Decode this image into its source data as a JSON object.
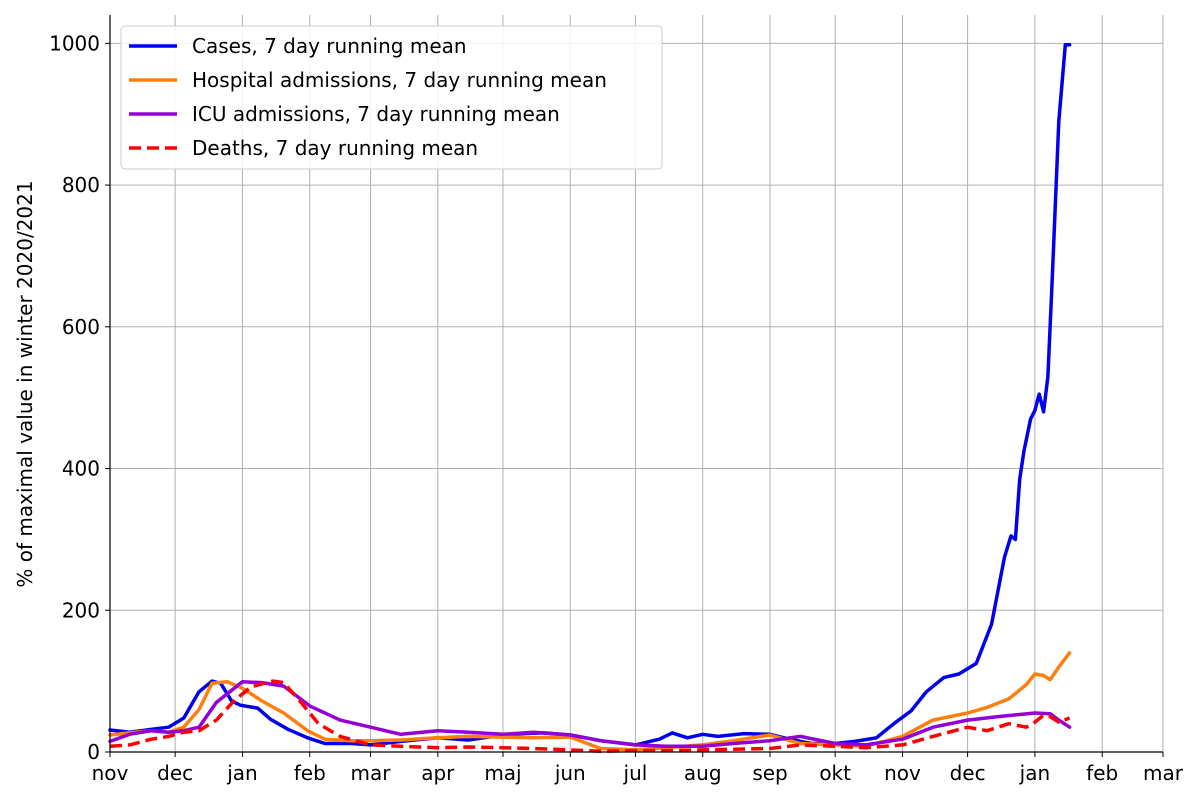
{
  "chart_data": {
    "type": "line",
    "title": "",
    "xlabel": "",
    "ylabel": "% of maximal value in winter 2020/2021",
    "x_tick_labels": [
      "nov",
      "dec",
      "jan",
      "feb",
      "mar",
      "apr",
      "maj",
      "jun",
      "jul",
      "aug",
      "sep",
      "okt",
      "nov",
      "dec",
      "jan",
      "feb",
      "mar"
    ],
    "x_tick_dates": [
      "2020-11-01",
      "2020-12-01",
      "2021-01-01",
      "2021-02-01",
      "2021-03-01",
      "2021-04-01",
      "2021-05-01",
      "2021-06-01",
      "2021-07-01",
      "2021-08-01",
      "2021-09-01",
      "2021-10-01",
      "2021-11-01",
      "2021-12-01",
      "2022-01-01",
      "2022-02-01",
      "2022-03-01"
    ],
    "xlim": [
      "2020-11-01",
      "2022-03-01"
    ],
    "ylim": [
      0,
      1040
    ],
    "y_ticks": [
      0,
      200,
      400,
      600,
      800,
      1000
    ],
    "grid": true,
    "legend_position": "top-left",
    "series": [
      {
        "name": "Cases, 7 day running mean",
        "color": "#0000ee",
        "style": "solid",
        "x": [
          "2020-11-01",
          "2020-11-10",
          "2020-11-20",
          "2020-11-28",
          "2020-12-05",
          "2020-12-12",
          "2020-12-18",
          "2020-12-22",
          "2020-12-27",
          "2020-12-31",
          "2021-01-08",
          "2021-01-14",
          "2021-01-22",
          "2021-01-31",
          "2021-02-08",
          "2021-02-20",
          "2021-03-01",
          "2021-03-15",
          "2021-04-01",
          "2021-04-15",
          "2021-05-01",
          "2021-05-10",
          "2021-05-20",
          "2021-06-01",
          "2021-06-15",
          "2021-07-01",
          "2021-07-12",
          "2021-07-18",
          "2021-07-25",
          "2021-08-01",
          "2021-08-08",
          "2021-08-20",
          "2021-09-01",
          "2021-09-10",
          "2021-09-20",
          "2021-10-01",
          "2021-10-10",
          "2021-10-20",
          "2021-10-28",
          "2021-11-05",
          "2021-11-12",
          "2021-11-20",
          "2021-11-27",
          "2021-12-05",
          "2021-12-12",
          "2021-12-18",
          "2021-12-21",
          "2021-12-23",
          "2021-12-25",
          "2021-12-27",
          "2021-12-30",
          "2022-01-01",
          "2022-01-03",
          "2022-01-05",
          "2022-01-07",
          "2022-01-09",
          "2022-01-12",
          "2022-01-15",
          "2022-01-17"
        ],
        "values": [
          31,
          28,
          32,
          35,
          48,
          85,
          100,
          97,
          72,
          66,
          62,
          46,
          32,
          20,
          12,
          12,
          10,
          15,
          20,
          17,
          24,
          26,
          27,
          24,
          16,
          10,
          18,
          27,
          20,
          25,
          22,
          26,
          25,
          18,
          12,
          12,
          15,
          20,
          40,
          58,
          85,
          105,
          110,
          125,
          180,
          275,
          305,
          300,
          385,
          425,
          470,
          482,
          505,
          480,
          530,
          670,
          890,
          998,
          998
        ]
      },
      {
        "name": "Hospital admissions, 7 day running mean",
        "color": "#ff7f0e",
        "style": "solid",
        "x": [
          "2020-11-01",
          "2020-11-10",
          "2020-11-20",
          "2020-11-28",
          "2020-12-05",
          "2020-12-12",
          "2020-12-18",
          "2020-12-25",
          "2021-01-01",
          "2021-01-10",
          "2021-01-20",
          "2021-01-31",
          "2021-02-08",
          "2021-02-20",
          "2021-03-01",
          "2021-03-15",
          "2021-04-01",
          "2021-04-15",
          "2021-05-01",
          "2021-05-15",
          "2021-06-01",
          "2021-06-15",
          "2021-07-01",
          "2021-07-15",
          "2021-08-01",
          "2021-08-15",
          "2021-09-01",
          "2021-09-15",
          "2021-10-01",
          "2021-10-15",
          "2021-11-01",
          "2021-11-15",
          "2021-12-01",
          "2021-12-10",
          "2021-12-20",
          "2021-12-28",
          "2022-01-01",
          "2022-01-05",
          "2022-01-08",
          "2022-01-12",
          "2022-01-17"
        ],
        "values": [
          24,
          27,
          30,
          28,
          35,
          60,
          97,
          99,
          90,
          72,
          55,
          30,
          18,
          16,
          16,
          17,
          20,
          22,
          21,
          20,
          21,
          5,
          3,
          6,
          10,
          16,
          24,
          12,
          10,
          8,
          22,
          45,
          55,
          63,
          75,
          95,
          110,
          108,
          102,
          120,
          140
        ]
      },
      {
        "name": "ICU admissions, 7 day running mean",
        "color": "#9400d3",
        "style": "solid",
        "x": [
          "2020-11-01",
          "2020-11-10",
          "2020-11-20",
          "2020-11-28",
          "2020-12-05",
          "2020-12-12",
          "2020-12-20",
          "2021-01-01",
          "2021-01-10",
          "2021-01-20",
          "2021-02-01",
          "2021-02-15",
          "2021-03-01",
          "2021-03-15",
          "2021-04-01",
          "2021-04-15",
          "2021-05-01",
          "2021-05-15",
          "2021-06-01",
          "2021-06-15",
          "2021-07-01",
          "2021-07-15",
          "2021-08-01",
          "2021-08-15",
          "2021-09-01",
          "2021-09-15",
          "2021-10-01",
          "2021-10-15",
          "2021-11-01",
          "2021-11-15",
          "2021-12-01",
          "2021-12-15",
          "2022-01-01",
          "2022-01-08",
          "2022-01-12",
          "2022-01-17"
        ],
        "values": [
          15,
          25,
          30,
          28,
          30,
          35,
          70,
          99,
          98,
          93,
          65,
          45,
          35,
          25,
          30,
          28,
          25,
          28,
          24,
          16,
          10,
          8,
          8,
          12,
          16,
          22,
          12,
          10,
          18,
          35,
          45,
          50,
          55,
          54,
          45,
          35
        ]
      },
      {
        "name": "Deaths, 7 day running mean",
        "color": "#ff0000",
        "style": "dashed",
        "x": [
          "2020-11-01",
          "2020-11-10",
          "2020-11-20",
          "2020-11-28",
          "2020-12-05",
          "2020-12-12",
          "2020-12-20",
          "2020-12-28",
          "2021-01-05",
          "2021-01-15",
          "2021-01-20",
          "2021-01-28",
          "2021-02-05",
          "2021-02-15",
          "2021-03-01",
          "2021-03-15",
          "2021-04-01",
          "2021-04-15",
          "2021-05-01",
          "2021-05-15",
          "2021-06-01",
          "2021-06-15",
          "2021-07-01",
          "2021-07-15",
          "2021-08-01",
          "2021-08-15",
          "2021-09-01",
          "2021-09-15",
          "2021-10-01",
          "2021-10-15",
          "2021-11-01",
          "2021-11-15",
          "2021-12-01",
          "2021-12-10",
          "2021-12-20",
          "2021-12-28",
          "2022-01-01",
          "2022-01-05",
          "2022-01-08",
          "2022-01-12",
          "2022-01-17"
        ],
        "values": [
          8,
          10,
          18,
          22,
          28,
          30,
          45,
          72,
          92,
          100,
          98,
          70,
          40,
          22,
          10,
          8,
          6,
          7,
          6,
          5,
          3,
          1,
          2,
          2,
          3,
          4,
          5,
          10,
          8,
          6,
          10,
          22,
          35,
          30,
          40,
          35,
          42,
          52,
          50,
          42,
          48
        ]
      }
    ]
  }
}
